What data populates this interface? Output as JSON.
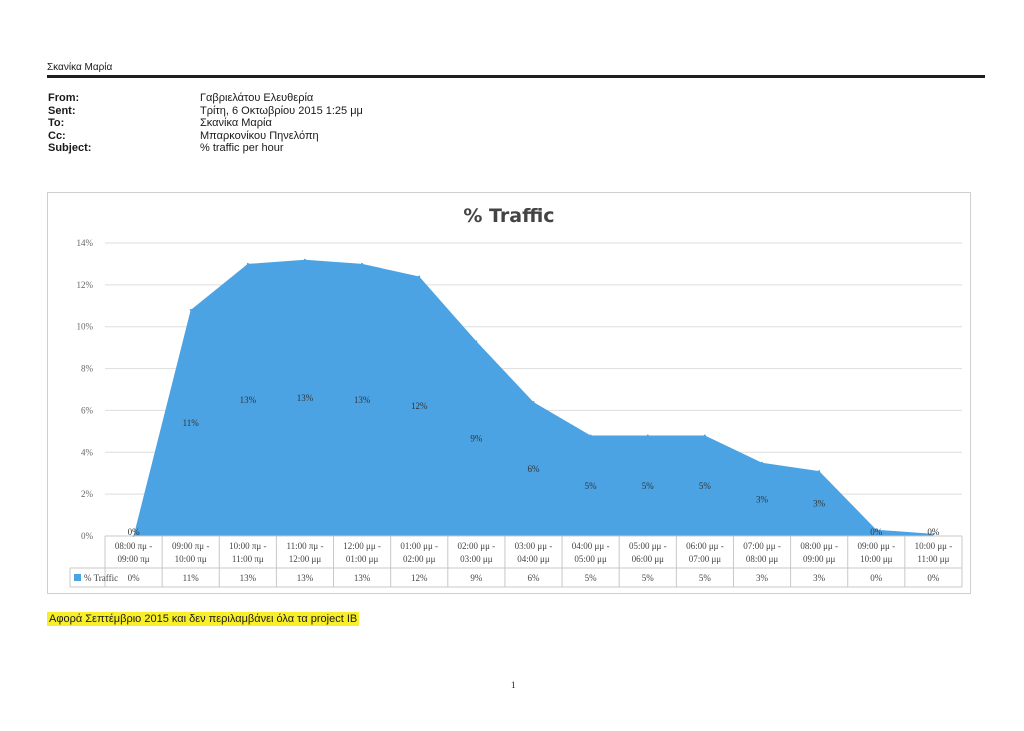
{
  "email": {
    "sender_name": "Σκανίκα Μαρία",
    "headers": [
      {
        "label": "From:",
        "value": "Γαβριελάτου Ελευθερία"
      },
      {
        "label": "Sent:",
        "value": "Τρίτη, 6 Οκτωβρίου 2015 1:25 μμ"
      },
      {
        "label": "To:",
        "value": "Σκανίκα Μαρία"
      },
      {
        "label": "Cc:",
        "value": "Μπαρκονίκου Πηνελόπη"
      },
      {
        "label": "Subject:",
        "value": "% traffic per hour"
      }
    ]
  },
  "chart_data": {
    "type": "area",
    "title": "% Traffic",
    "series": [
      {
        "name": "% Traffic",
        "values": [
          0,
          10.8,
          13.0,
          13.2,
          13.0,
          12.4,
          9.3,
          6.4,
          4.8,
          4.8,
          4.8,
          3.5,
          3.1,
          0.3,
          0.1
        ]
      }
    ],
    "data_labels": [
      "0%",
      "11%",
      "13%",
      "13%",
      "13%",
      "12%",
      "9%",
      "6%",
      "5%",
      "5%",
      "5%",
      "3%",
      "3%",
      "0%",
      "0%"
    ],
    "categories": [
      [
        "08:00 πμ -",
        "09:00 πμ"
      ],
      [
        "09:00 πμ -",
        "10:00 πμ"
      ],
      [
        "10:00 πμ -",
        "11:00 πμ"
      ],
      [
        "11:00 πμ -",
        "12:00 μμ"
      ],
      [
        "12:00 μμ -",
        "01:00 μμ"
      ],
      [
        "01:00 μμ -",
        "02:00 μμ"
      ],
      [
        "02:00 μμ -",
        "03:00 μμ"
      ],
      [
        "03:00 μμ -",
        "04:00 μμ"
      ],
      [
        "04:00 μμ -",
        "05:00 μμ"
      ],
      [
        "05:00 μμ -",
        "06:00 μμ"
      ],
      [
        "06:00 μμ -",
        "07:00 μμ"
      ],
      [
        "07:00 μμ -",
        "08:00 μμ"
      ],
      [
        "08:00 μμ -",
        "09:00 μμ"
      ],
      [
        "09:00 μμ -",
        "10:00 μμ"
      ],
      [
        "10:00 μμ -",
        "11:00 μμ"
      ]
    ],
    "y_ticks": [
      "0%",
      "2%",
      "4%",
      "6%",
      "8%",
      "10%",
      "12%",
      "14%"
    ],
    "ylim": [
      0,
      14
    ],
    "grid": true,
    "legend": "data-table",
    "fill_color": "#4ba3e3"
  },
  "footer": {
    "note": "Αφορά Σεπτέμβριο 2015 και δεν περιλαμβάνει όλα τα project IB",
    "page_number": "1"
  }
}
